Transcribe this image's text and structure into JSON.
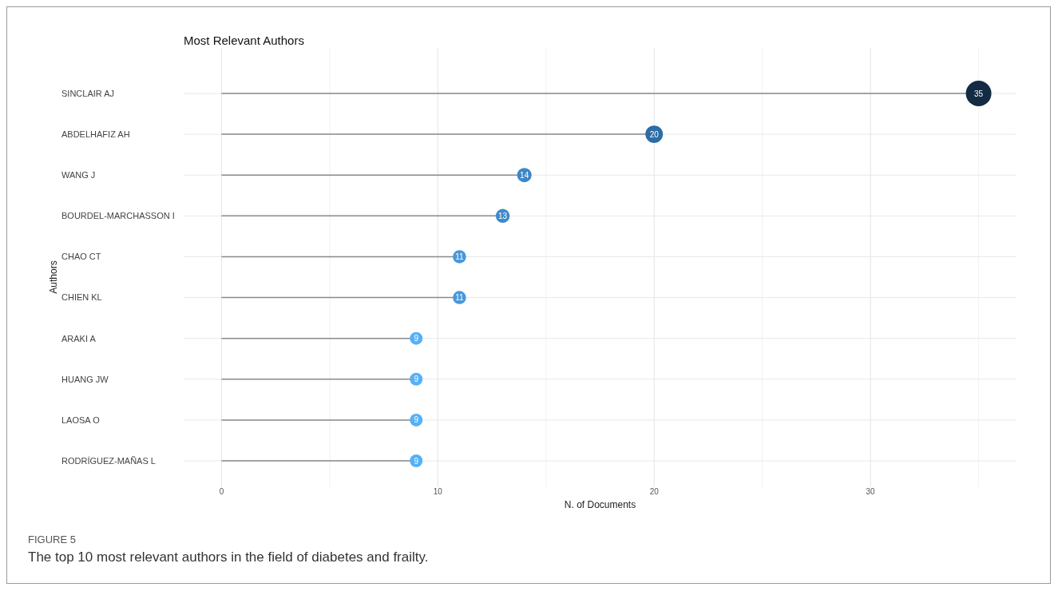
{
  "chart_data": {
    "type": "lollipop",
    "orientation": "horizontal",
    "title": "Most Relevant Authors",
    "xlabel": "N. of Documents",
    "ylabel": "Authors",
    "categories": [
      "SINCLAIR AJ",
      "ABDELHAFIZ AH",
      "WANG J",
      "BOURDEL-MARCHASSON I",
      "CHAO CT",
      "CHIEN KL",
      "ARAKI A",
      "HUANG JW",
      "LAOSA O",
      "RODRÍGUEZ-MAÑAS L"
    ],
    "values": [
      35,
      20,
      14,
      13,
      11,
      11,
      9,
      9,
      9,
      9
    ],
    "colors": [
      "#132b43",
      "#2d6ca4",
      "#3d87c6",
      "#4089ca",
      "#4898dc",
      "#4898dc",
      "#56b1f7",
      "#56b1f7",
      "#56b1f7",
      "#56b1f7"
    ],
    "xlim": [
      -1.75,
      36.75
    ],
    "xticks": [
      0,
      {
        "value": 5,
        "label": null
      },
      10,
      {
        "value": 15,
        "label": null
      },
      20,
      {
        "value": 25,
        "label": null
      },
      30,
      {
        "value": 35,
        "label": null
      }
    ],
    "sizes": [
      1,
      0.47,
      0.32,
      0.3,
      0.27,
      0.27,
      0.25,
      0.25,
      0.25,
      0.25
    ],
    "grid": true,
    "data_labels": true,
    "annotations": [
      "FIGURE 5",
      "The top 10 most relevant authors in the field of diabetes and frailty."
    ]
  }
}
